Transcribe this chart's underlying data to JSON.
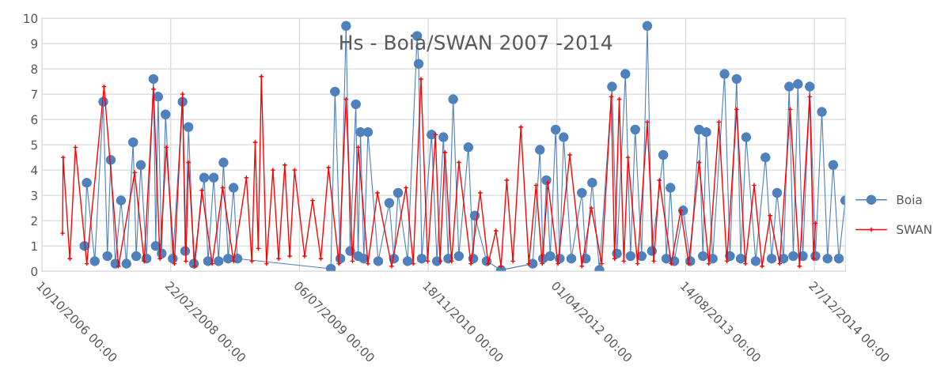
{
  "chart_data": {
    "type": "line",
    "title": "Hs - Boia/SWAN 2007 -2014",
    "xlim": [
      "2006-10-10",
      "2015-04-26"
    ],
    "xticks": [
      {
        "value": "2006-10-10",
        "label": "10/10/2006 00:00"
      },
      {
        "value": "2008-02-22",
        "label": "22/02/2008 00:00"
      },
      {
        "value": "2009-07-06",
        "label": "06/07/2009 00:00"
      },
      {
        "value": "2010-11-18",
        "label": "18/11/2010 00:00"
      },
      {
        "value": "2012-04-01",
        "label": "01/04/2012 00:00"
      },
      {
        "value": "2013-08-14",
        "label": "14/08/2013 00:00"
      },
      {
        "value": "2014-12-27",
        "label": "27/12/2014 00:00"
      }
    ],
    "ylim": [
      0,
      10
    ],
    "yticks": [
      0,
      1,
      2,
      3,
      4,
      5,
      6,
      7,
      8,
      9,
      10
    ],
    "grid": true,
    "legend": "right",
    "line_style": "solid",
    "series": [
      {
        "name": "Boia",
        "color": "#4f81bd",
        "marker": "circle",
        "x": [
          "2007-03-24",
          "2007-04-02",
          "2007-05-03",
          "2007-06-05",
          "2007-06-21",
          "2007-07-04",
          "2007-07-22",
          "2007-08-13",
          "2007-09-03",
          "2007-09-29",
          "2007-10-11",
          "2007-10-29",
          "2007-11-20",
          "2007-12-17",
          "2007-12-26",
          "2008-01-04",
          "2008-01-18",
          "2008-02-02",
          "2008-03-01",
          "2008-04-08",
          "2008-04-18",
          "2008-05-01",
          "2008-05-22",
          "2008-07-01",
          "2008-07-16",
          "2008-08-07",
          "2008-08-26",
          "2008-09-14",
          "2008-10-02",
          "2008-10-23",
          "2008-11-07",
          "2009-11-05",
          "2009-11-21",
          "2009-12-12",
          "2010-01-03",
          "2010-01-19",
          "2010-02-10",
          "2010-02-19",
          "2010-02-28",
          "2010-03-13",
          "2010-03-29",
          "2010-05-08",
          "2010-06-20",
          "2010-07-08",
          "2010-07-24",
          "2010-08-30",
          "2010-10-06",
          "2010-10-12",
          "2010-10-24",
          "2010-12-01",
          "2010-12-22",
          "2011-01-16",
          "2011-02-04",
          "2011-02-23",
          "2011-03-17",
          "2011-04-23",
          "2011-05-12",
          "2011-05-18",
          "2011-07-03",
          "2011-08-28",
          "2011-12-29",
          "2012-01-26",
          "2012-02-07",
          "2012-02-20",
          "2012-03-06",
          "2012-03-27",
          "2012-04-12",
          "2012-04-27",
          "2012-05-27",
          "2012-07-07",
          "2012-07-22",
          "2012-08-16",
          "2012-09-13",
          "2012-11-01",
          "2012-11-20",
          "2012-12-23",
          "2013-01-12",
          "2013-01-30",
          "2013-02-24",
          "2013-03-18",
          "2013-04-05",
          "2013-05-19",
          "2013-05-31",
          "2013-06-16",
          "2013-07-01",
          "2013-08-04",
          "2013-09-01",
          "2013-10-05",
          "2013-10-20",
          "2013-11-02",
          "2013-11-27",
          "2014-01-12",
          "2014-02-02",
          "2014-02-28",
          "2014-03-16",
          "2014-04-06",
          "2014-05-13",
          "2014-06-20",
          "2014-07-14",
          "2014-08-04",
          "2014-08-29",
          "2014-09-20",
          "2014-10-06",
          "2014-10-24",
          "2014-11-12",
          "2014-12-09",
          "2014-12-31",
          "2015-01-25",
          "2015-02-16",
          "2015-03-10",
          "2015-04-01",
          "2015-04-26"
        ],
        "values": [
          1.0,
          3.5,
          0.4,
          6.7,
          0.6,
          4.4,
          0.3,
          2.8,
          0.3,
          5.1,
          0.6,
          4.2,
          0.5,
          7.6,
          1.0,
          6.9,
          0.7,
          6.2,
          0.5,
          6.7,
          0.8,
          5.7,
          0.3,
          3.7,
          0.4,
          3.7,
          0.4,
          4.3,
          0.5,
          3.3,
          0.5,
          0.1,
          7.1,
          0.5,
          9.7,
          0.8,
          6.6,
          0.6,
          5.5,
          0.5,
          5.5,
          0.4,
          2.7,
          0.5,
          3.1,
          0.4,
          9.3,
          8.2,
          0.5,
          5.4,
          0.4,
          5.3,
          0.5,
          6.8,
          0.6,
          4.9,
          0.5,
          2.2,
          0.4,
          0.05,
          0.3,
          4.8,
          0.5,
          3.6,
          0.6,
          5.6,
          0.5,
          5.3,
          0.5,
          3.1,
          0.5,
          3.5,
          0.05,
          7.3,
          0.7,
          7.8,
          0.6,
          5.6,
          0.6,
          9.7,
          0.8,
          4.6,
          0.5,
          3.3,
          0.4,
          2.4,
          0.4,
          5.6,
          0.6,
          5.5,
          0.5,
          7.8,
          0.6,
          7.6,
          0.5,
          5.3,
          0.4,
          4.5,
          0.5,
          3.1,
          0.5,
          7.3,
          0.6,
          7.4,
          0.6,
          7.3,
          0.6,
          6.3,
          0.5,
          4.2,
          0.5,
          2.8
        ]
      },
      {
        "name": "SWAN",
        "color": "#ff0000",
        "marker": "cross",
        "x": [
          "2006-12-29",
          "2006-12-31",
          "2007-01-26",
          "2007-02-17",
          "2007-04-02",
          "2007-06-08",
          "2007-08-03",
          "2007-10-05",
          "2007-11-11",
          "2007-12-17",
          "2008-01-11",
          "2008-02-05",
          "2008-03-07",
          "2008-04-08",
          "2008-04-21",
          "2008-05-01",
          "2008-05-25",
          "2008-06-22",
          "2008-08-01",
          "2008-09-11",
          "2008-10-23",
          "2008-12-12",
          "2009-01-02",
          "2009-01-15",
          "2009-01-27",
          "2009-02-08",
          "2009-02-28",
          "2009-03-25",
          "2009-04-16",
          "2009-05-10",
          "2009-05-29",
          "2009-06-17",
          "2009-07-26",
          "2009-08-26",
          "2009-09-27",
          "2009-10-27",
          "2009-12-06",
          "2010-01-03",
          "2010-01-28",
          "2010-02-19",
          "2010-03-29",
          "2010-05-05",
          "2010-06-29",
          "2010-08-24",
          "2010-09-21",
          "2010-10-21",
          "2010-11-16",
          "2010-12-16",
          "2011-01-03",
          "2011-01-22",
          "2011-02-17",
          "2011-03-17",
          "2011-05-03",
          "2011-06-08",
          "2011-07-09",
          "2011-08-08",
          "2011-08-28",
          "2011-09-19",
          "2011-10-13",
          "2011-11-13",
          "2011-12-14",
          "2012-01-11",
          "2012-02-04",
          "2012-02-26",
          "2012-04-05",
          "2012-05-21",
          "2012-07-07",
          "2012-08-13",
          "2012-09-22",
          "2012-10-29",
          "2012-11-11",
          "2012-11-29",
          "2012-12-17",
          "2013-01-02",
          "2013-02-08",
          "2013-03-18",
          "2013-04-12",
          "2013-05-04",
          "2013-06-19",
          "2013-07-26",
          "2013-08-26",
          "2013-10-05",
          "2013-11-12",
          "2013-12-21",
          "2014-01-21",
          "2014-02-28",
          "2014-04-03",
          "2014-05-07",
          "2014-06-07",
          "2014-07-08",
          "2014-08-14",
          "2014-09-24",
          "2014-10-30",
          "2014-12-09",
          "2014-12-24",
          "2014-12-31"
        ],
        "values": [
          1.5,
          4.5,
          0.5,
          4.9,
          0.3,
          7.3,
          0.2,
          3.9,
          0.4,
          7.2,
          0.5,
          4.9,
          0.3,
          7.0,
          0.4,
          4.3,
          0.2,
          3.2,
          0.3,
          3.3,
          0.4,
          3.7,
          0.4,
          5.1,
          0.9,
          7.7,
          0.3,
          4.0,
          0.5,
          4.2,
          0.6,
          4.0,
          0.6,
          2.8,
          0.5,
          4.1,
          0.3,
          6.8,
          0.4,
          4.9,
          0.3,
          3.1,
          0.2,
          3.3,
          0.3,
          7.6,
          0.4,
          5.4,
          0.4,
          4.7,
          0.4,
          4.3,
          0.3,
          3.1,
          0.3,
          1.6,
          0.2,
          3.6,
          0.4,
          5.7,
          0.3,
          3.4,
          0.3,
          3.5,
          0.3,
          4.6,
          0.2,
          2.5,
          0.3,
          6.9,
          0.5,
          6.8,
          0.4,
          4.5,
          0.3,
          5.9,
          0.4,
          3.6,
          0.3,
          2.4,
          0.3,
          4.3,
          0.3,
          5.9,
          0.4,
          6.4,
          0.3,
          3.4,
          0.2,
          2.2,
          0.3,
          6.4,
          0.2,
          6.9,
          0.5,
          1.9
        ]
      }
    ]
  }
}
